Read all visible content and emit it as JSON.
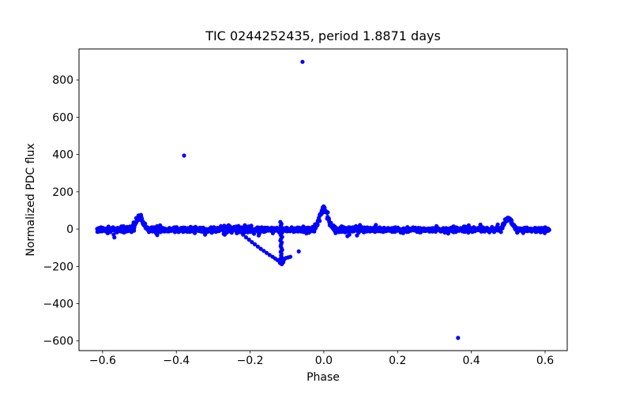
{
  "chart_data": {
    "type": "scatter",
    "title": "TIC 0244252435, period 1.8871 days",
    "xlabel": "Phase",
    "ylabel": "Normalized PDC flux",
    "xlim": [
      -0.664,
      0.66
    ],
    "ylim": [
      -652,
      966
    ],
    "xticks": [
      -0.6,
      -0.4,
      -0.2,
      0.0,
      0.2,
      0.4,
      0.6
    ],
    "xtick_labels": [
      "−0.6",
      "−0.4",
      "−0.2",
      "0.0",
      "0.2",
      "0.4",
      "0.6"
    ],
    "yticks": [
      -600,
      -400,
      -200,
      0,
      200,
      400,
      600,
      800
    ],
    "ytick_labels": [
      "−600",
      "−400",
      "−200",
      "0",
      "200",
      "400",
      "600",
      "800"
    ],
    "grid": false,
    "legend": null,
    "marker_color": "#0000ff",
    "marker_radius_px": 2.6,
    "series": [
      {
        "name": "folded-light-curve-band",
        "render": "generated",
        "phase_range": [
          -0.615,
          0.612
        ],
        "n_points": 1650,
        "baseline_flux": -3,
        "noise_profile": [
          {
            "range": [
              -0.7,
              0.0
            ],
            "sigma": 7.0
          },
          {
            "range": [
              0.0,
              0.7
            ],
            "sigma": 5.5
          }
        ],
        "extra_noise_zone": {
          "range": [
            -0.02,
            0.12
          ],
          "sigma_add": 3
        },
        "fuzz_points": 130,
        "fuzz_sigma": 13,
        "bumps": [
          {
            "phase": -0.5,
            "amplitude": 68,
            "sigma": 0.009
          },
          {
            "phase": 0.0,
            "amplitude": 112,
            "sigma": 0.011
          },
          {
            "phase": 0.5,
            "amplitude": 64,
            "sigma": 0.009
          }
        ]
      },
      {
        "name": "dip-trail",
        "render": "points",
        "points": [
          [
            -0.225,
            -16
          ],
          [
            -0.219,
            -30
          ],
          [
            -0.211,
            -44
          ],
          [
            -0.203,
            -57
          ],
          [
            -0.195,
            -70
          ],
          [
            -0.187,
            -82
          ],
          [
            -0.179,
            -94
          ],
          [
            -0.171,
            -106
          ],
          [
            -0.163,
            -117
          ],
          [
            -0.155,
            -128
          ],
          [
            -0.147,
            -139
          ],
          [
            -0.139,
            -149
          ],
          [
            -0.132,
            -158
          ],
          [
            -0.126,
            -166
          ],
          [
            -0.12,
            -172
          ]
        ]
      },
      {
        "name": "deep-dip-cluster",
        "render": "points",
        "points": [
          [
            -0.118,
            38
          ],
          [
            -0.115,
            28
          ],
          [
            -0.117,
            18
          ],
          [
            -0.114,
            8
          ],
          [
            -0.116,
            -2
          ],
          [
            -0.118,
            -12
          ],
          [
            -0.115,
            -22
          ],
          [
            -0.117,
            -32
          ],
          [
            -0.113,
            -42
          ],
          [
            -0.116,
            -52
          ],
          [
            -0.118,
            -62
          ],
          [
            -0.114,
            -72
          ],
          [
            -0.116,
            -82
          ],
          [
            -0.117,
            -92
          ],
          [
            -0.115,
            -102
          ],
          [
            -0.113,
            -112
          ],
          [
            -0.117,
            -122
          ],
          [
            -0.115,
            -132
          ],
          [
            -0.116,
            -142
          ],
          [
            -0.114,
            -152
          ],
          [
            -0.118,
            -160
          ],
          [
            -0.112,
            -168
          ],
          [
            -0.116,
            -175
          ],
          [
            -0.119,
            -182
          ],
          [
            -0.114,
            -188
          ],
          [
            -0.11,
            -178
          ],
          [
            -0.121,
            -172
          ],
          [
            -0.107,
            -162
          ],
          [
            -0.103,
            -155
          ],
          [
            -0.097,
            -152
          ],
          [
            -0.091,
            -149
          ],
          [
            -0.068,
            -120
          ]
        ]
      },
      {
        "name": "band-underside-strays",
        "render": "points",
        "points": [
          [
            -0.57,
            -30
          ],
          [
            -0.568,
            -45
          ],
          [
            -0.452,
            -32
          ],
          [
            -0.322,
            -30
          ],
          [
            -0.236,
            -22
          ],
          [
            0.064,
            -38
          ],
          [
            0.09,
            -34
          ]
        ]
      },
      {
        "name": "outliers",
        "render": "points",
        "points": [
          [
            -0.379,
            394
          ],
          [
            -0.058,
            897
          ],
          [
            0.364,
            -584
          ]
        ]
      }
    ]
  }
}
